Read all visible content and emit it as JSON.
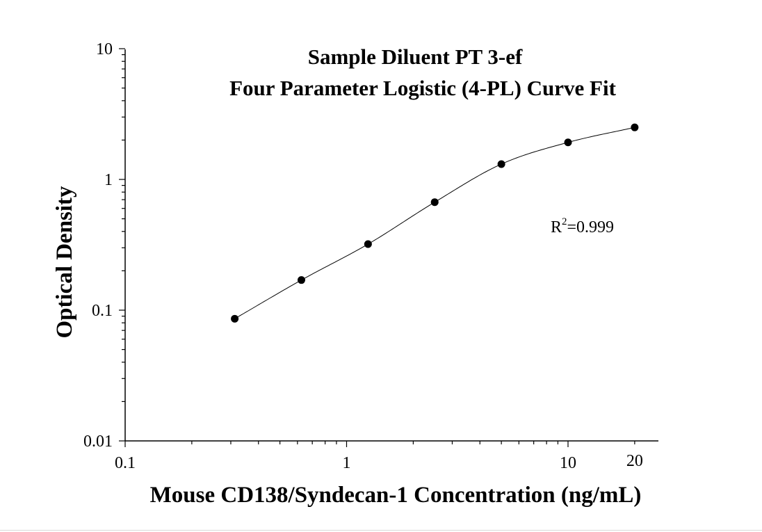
{
  "chart_data": {
    "type": "scatter",
    "title_line1": "Sample Diluent PT 3-ef",
    "title_line2": "Four Parameter Logistic (4-PL) Curve Fit",
    "xlabel": "Mouse CD138/Syndecan-1 Concentration (ng/mL)",
    "ylabel": "Optical Density",
    "x_scale": "log",
    "y_scale": "log",
    "xlim": [
      0.1,
      25
    ],
    "ylim": [
      0.01,
      10
    ],
    "x_tick_labels": [
      "0.1",
      "1",
      "10",
      "20"
    ],
    "y_tick_labels": [
      "0.01",
      "0.1",
      "1",
      "10"
    ],
    "x_tick_values": [
      0.1,
      1,
      10,
      20
    ],
    "y_tick_values": [
      0.01,
      0.1,
      1,
      10
    ],
    "series": [
      {
        "points": [
          {
            "x": 0.3125,
            "y": 0.086
          },
          {
            "x": 0.625,
            "y": 0.17
          },
          {
            "x": 1.25,
            "y": 0.32
          },
          {
            "x": 2.5,
            "y": 0.67
          },
          {
            "x": 5,
            "y": 1.31
          },
          {
            "x": 10,
            "y": 1.92
          },
          {
            "x": 20,
            "y": 2.5
          }
        ]
      }
    ],
    "annotation": {
      "base": "R",
      "sup": "2",
      "rest": "=0.999"
    },
    "grid": false,
    "legend": "none"
  }
}
